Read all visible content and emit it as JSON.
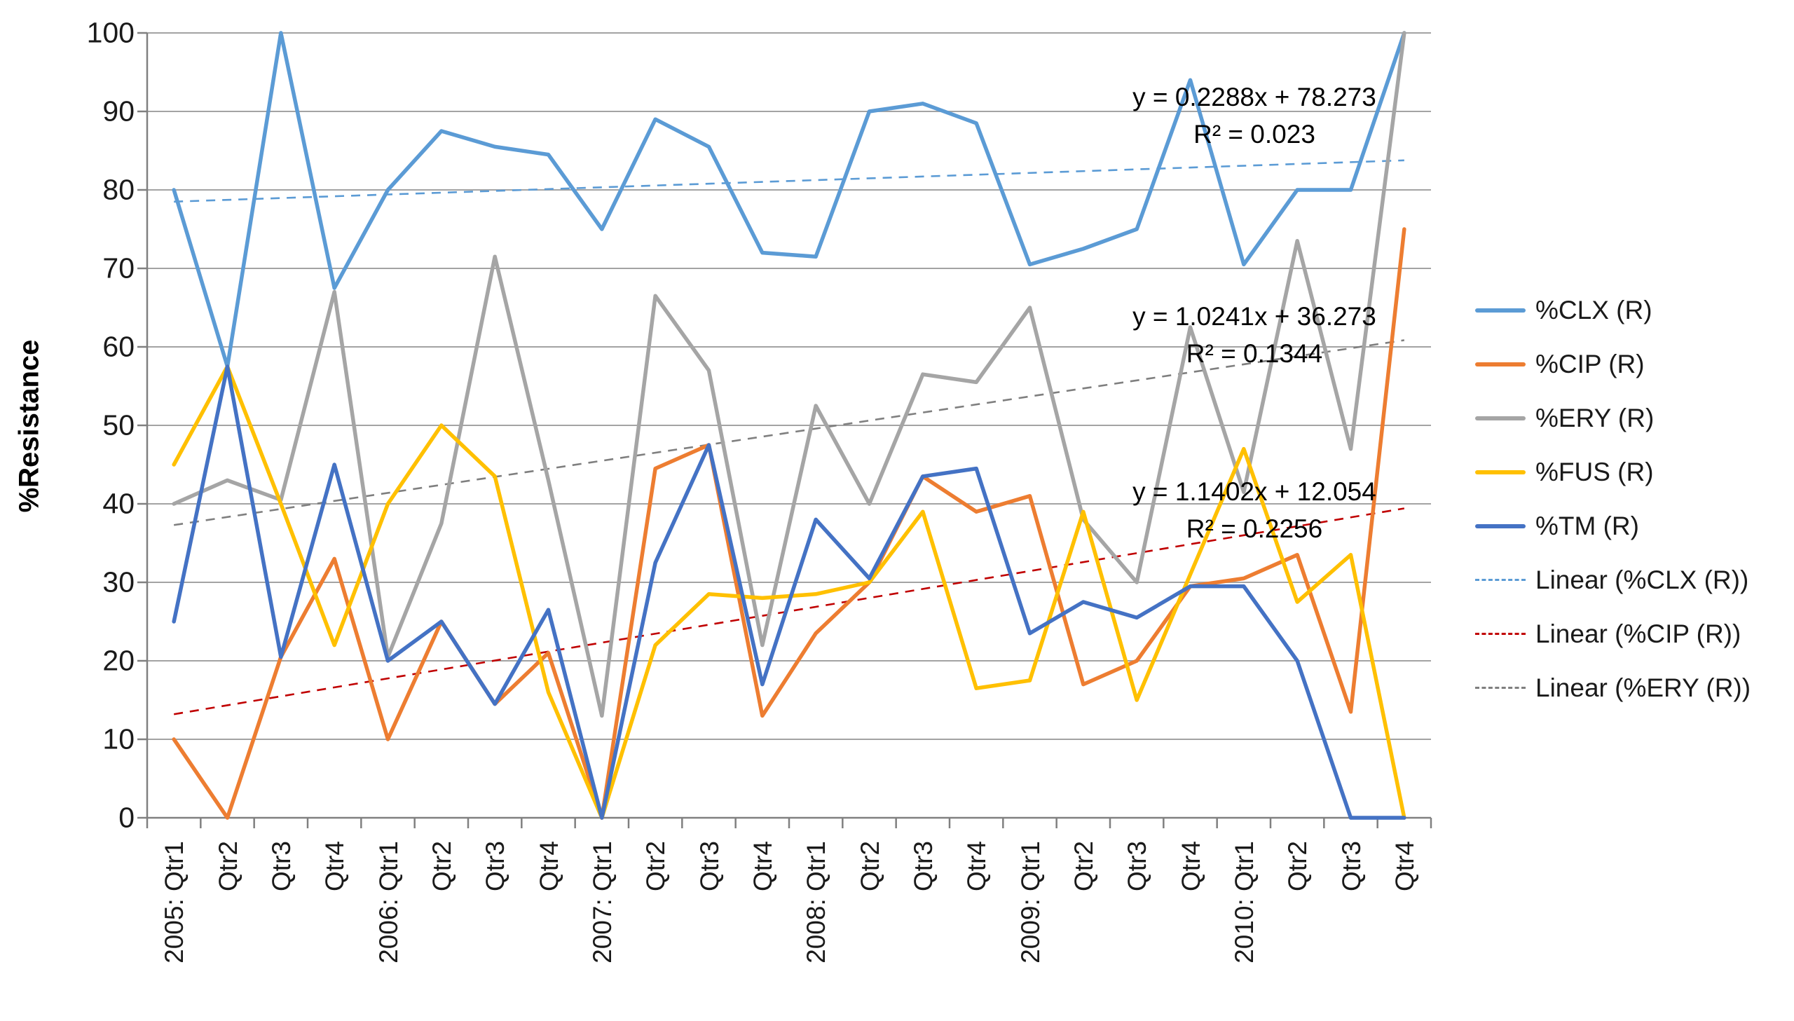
{
  "chart_data": {
    "type": "line",
    "title": "",
    "ylabel": "%Resistance",
    "ylim": [
      0,
      100
    ],
    "ytick_step": 10,
    "yticks": [
      0,
      10,
      20,
      30,
      40,
      50,
      60,
      70,
      80,
      90,
      100
    ],
    "grid": true,
    "legend_position": "right",
    "categories": [
      "2005: Qtr1",
      "Qtr2",
      "Qtr3",
      "Qtr4",
      "2006: Qtr1",
      "Qtr2",
      "Qtr3",
      "Qtr4",
      "2007: Qtr1",
      "Qtr2",
      "Qtr3",
      "Qtr4",
      "2008: Qtr1",
      "Qtr2",
      "Qtr3",
      "Qtr4",
      "2009: Qtr1",
      "Qtr2",
      "Qtr3",
      "Qtr4",
      "2010: Qtr1",
      "Qtr2",
      "Qtr3",
      "Qtr4"
    ],
    "series": [
      {
        "name": "%CLX (R)",
        "color": "#5B9BD5",
        "values": [
          80,
          57.5,
          100,
          67.5,
          80,
          87.5,
          85.5,
          84.5,
          75,
          89,
          85.5,
          72,
          71.5,
          90,
          91,
          88.5,
          70.5,
          72.5,
          75,
          94,
          70.5,
          80,
          80,
          100
        ]
      },
      {
        "name": "%CIP (R)",
        "color": "#ED7D31",
        "values": [
          10,
          0,
          20.5,
          33,
          10,
          25,
          14.5,
          21,
          0,
          44.5,
          47.5,
          13,
          23.5,
          30,
          43.5,
          39,
          41,
          17,
          20,
          29.5,
          30.5,
          33.5,
          13.5,
          75
        ]
      },
      {
        "name": "%ERY (R)",
        "color": "#A5A5A5",
        "values": [
          40,
          43,
          40.5,
          67,
          20.5,
          37.5,
          71.5,
          43,
          13,
          66.5,
          57,
          22,
          52.5,
          40,
          56.5,
          55.5,
          65,
          38,
          30,
          62.5,
          41.5,
          73.5,
          47,
          100
        ]
      },
      {
        "name": "%FUS (R)",
        "color": "#FFC000",
        "values": [
          45,
          57.5,
          40,
          22,
          40,
          50,
          43.5,
          16,
          0,
          22,
          28.5,
          28,
          28.5,
          30,
          39,
          16.5,
          17.5,
          39,
          15,
          31,
          47,
          27.5,
          33.5,
          0
        ]
      },
      {
        "name": "%TM (R)",
        "color": "#4472C4",
        "values": [
          25,
          57.5,
          20.5,
          45,
          20,
          25,
          14.5,
          26.5,
          0,
          32.5,
          47.5,
          17,
          38,
          30.5,
          43.5,
          44.5,
          23.5,
          27.5,
          25.5,
          29.5,
          29.5,
          20,
          0,
          0
        ]
      }
    ],
    "trendlines": [
      {
        "name": "Linear (%CLX (R))",
        "color": "#5B9BD5",
        "slope": 0.2288,
        "intercept": 78.273
      },
      {
        "name": "Linear (%CIP (R))",
        "color": "#C00000",
        "slope": 1.1402,
        "intercept": 12.054
      },
      {
        "name": "Linear (%ERY (R))",
        "color": "#7F7F7F",
        "slope": 1.0241,
        "intercept": 36.273
      }
    ],
    "annotations": [
      {
        "id": "clx",
        "line1": "y = 0.2288x + 78.273",
        "line2": "R² = 0.023"
      },
      {
        "id": "ery",
        "line1": "y = 1.0241x + 36.273",
        "line2": "R² = 0.1344"
      },
      {
        "id": "cip",
        "line1": "y = 1.1402x + 12.054",
        "line2": "R² = 0.2256"
      }
    ],
    "legend": [
      {
        "label": "%CLX (R)",
        "color": "#5B9BD5",
        "dashed": false
      },
      {
        "label": "%CIP (R)",
        "color": "#ED7D31",
        "dashed": false
      },
      {
        "label": "%ERY (R)",
        "color": "#A5A5A5",
        "dashed": false
      },
      {
        "label": "%FUS (R)",
        "color": "#FFC000",
        "dashed": false
      },
      {
        "label": "%TM (R)",
        "color": "#4472C4",
        "dashed": false
      },
      {
        "label": "Linear (%CLX (R))",
        "color": "#5B9BD5",
        "dashed": true
      },
      {
        "label": "Linear (%CIP (R))",
        "color": "#C00000",
        "dashed": true
      },
      {
        "label": "Linear (%ERY (R))",
        "color": "#7F7F7F",
        "dashed": true
      }
    ],
    "colors": {
      "gridline": "#A3A3A3",
      "axis": "#808080",
      "text": "#1a1a1a"
    }
  }
}
